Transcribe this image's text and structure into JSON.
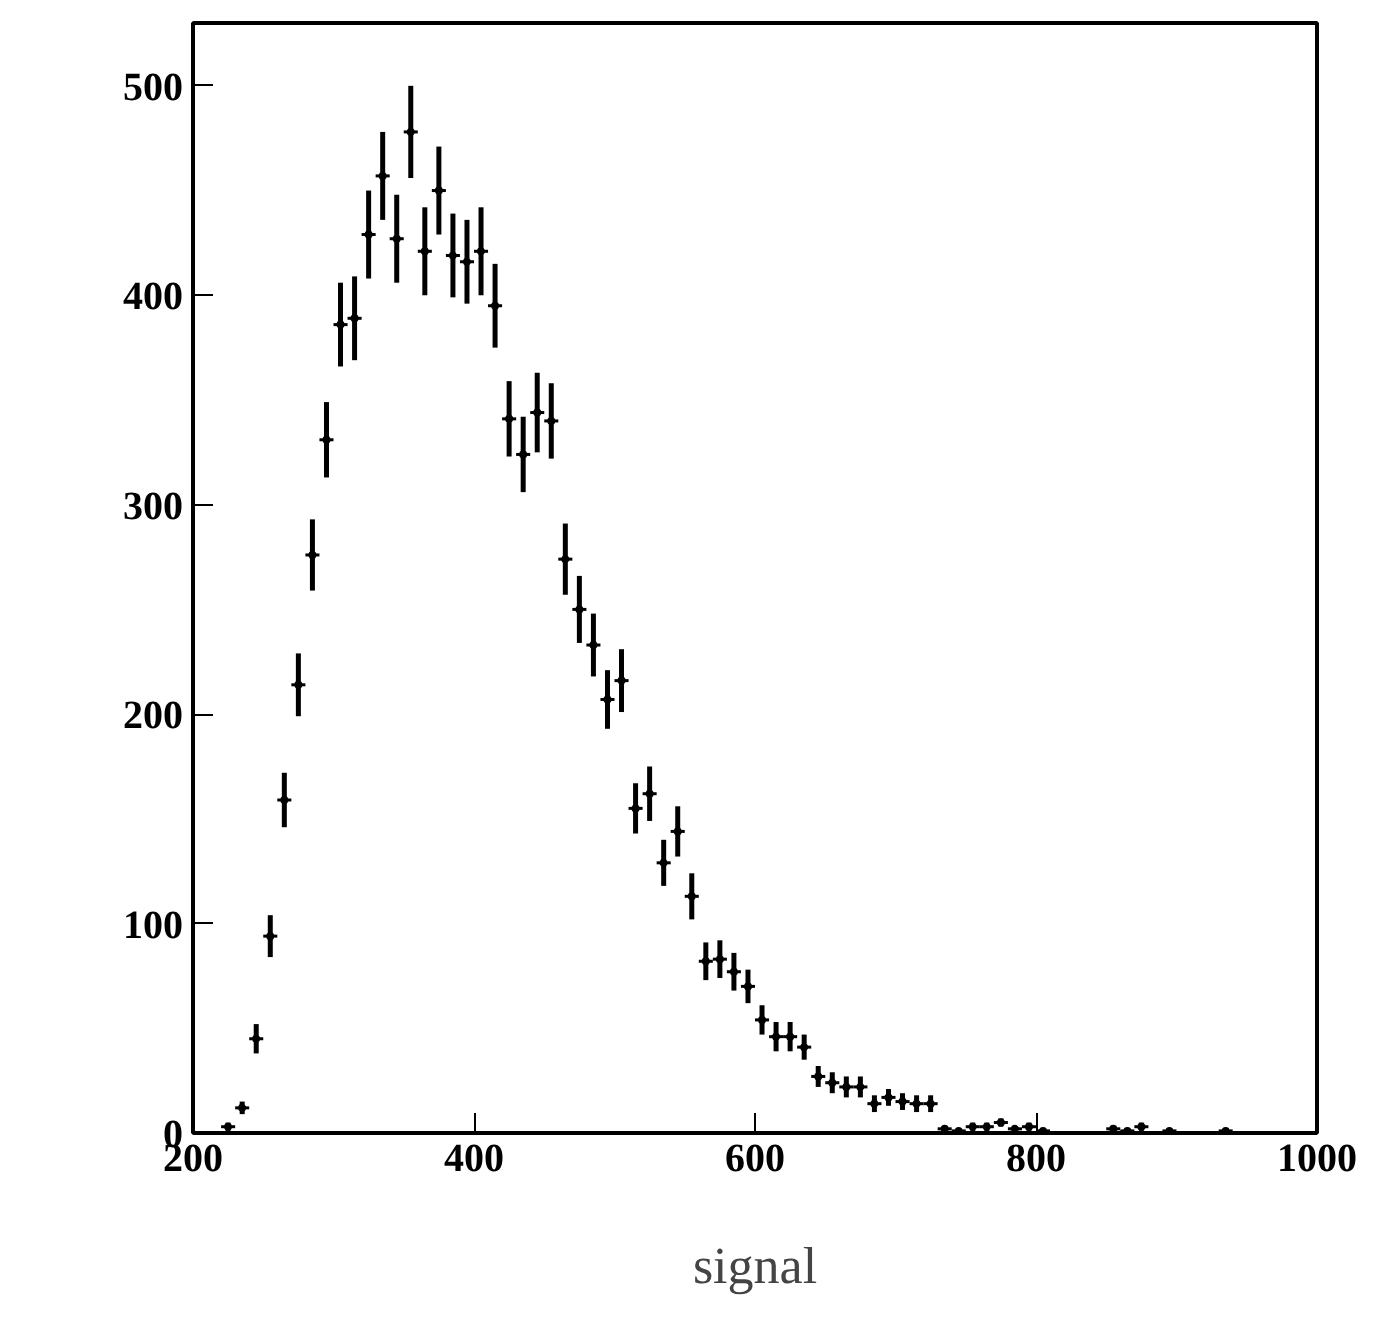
{
  "chart_data": {
    "type": "scatter",
    "xlabel": "signal",
    "xlim": [
      200,
      1000
    ],
    "ylim": [
      0,
      530
    ],
    "xticks": [
      200,
      400,
      600,
      800,
      1000
    ],
    "yticks": [
      0,
      100,
      200,
      300,
      400,
      500
    ],
    "grid": false,
    "color": "#000000",
    "x": [
      225,
      235,
      245,
      255,
      265,
      275,
      285,
      295,
      305,
      315,
      325,
      335,
      345,
      355,
      365,
      375,
      385,
      395,
      405,
      415,
      425,
      435,
      445,
      455,
      465,
      475,
      485,
      495,
      505,
      515,
      525,
      535,
      545,
      555,
      565,
      575,
      585,
      595,
      605,
      615,
      625,
      635,
      645,
      655,
      665,
      675,
      685,
      695,
      705,
      715,
      725,
      735,
      745,
      755,
      765,
      775,
      785,
      795,
      805,
      855,
      865,
      875,
      895,
      935
    ],
    "values": [
      3,
      12,
      45,
      94,
      159,
      214,
      276,
      331,
      386,
      389,
      429,
      457,
      427,
      478,
      421,
      450,
      419,
      416,
      421,
      395,
      341,
      324,
      344,
      340,
      274,
      250,
      233,
      207,
      216,
      155,
      162,
      129,
      144,
      113,
      82,
      83,
      77,
      70,
      54,
      46,
      46,
      41,
      27,
      24,
      22,
      22,
      14,
      17,
      15,
      14,
      14,
      2,
      1,
      3,
      3,
      5,
      2,
      3,
      1,
      2,
      1,
      3,
      1,
      1
    ],
    "errors": [
      2,
      3,
      7,
      10,
      13,
      15,
      17,
      18,
      20,
      20,
      21,
      21,
      21,
      22,
      21,
      21,
      20,
      20,
      21,
      20,
      18,
      18,
      19,
      18,
      17,
      16,
      15,
      14,
      15,
      12,
      13,
      11,
      12,
      11,
      9,
      9,
      9,
      8,
      7,
      7,
      7,
      6,
      5,
      5,
      5,
      5,
      4,
      4,
      4,
      4,
      4,
      1,
      1,
      2,
      2,
      2,
      1,
      2,
      1,
      1,
      1,
      2,
      1,
      1
    ],
    "xerrors": [
      5,
      5,
      5,
      5,
      5,
      5,
      5,
      5,
      5,
      5,
      5,
      5,
      5,
      5,
      5,
      5,
      5,
      5,
      5,
      5,
      5,
      5,
      5,
      5,
      5,
      5,
      5,
      5,
      5,
      5,
      5,
      5,
      5,
      5,
      5,
      5,
      5,
      5,
      5,
      5,
      5,
      5,
      5,
      5,
      5,
      5,
      5,
      5,
      5,
      5,
      5,
      5,
      5,
      5,
      5,
      5,
      5,
      5,
      5,
      5,
      5,
      5,
      5,
      5
    ]
  }
}
